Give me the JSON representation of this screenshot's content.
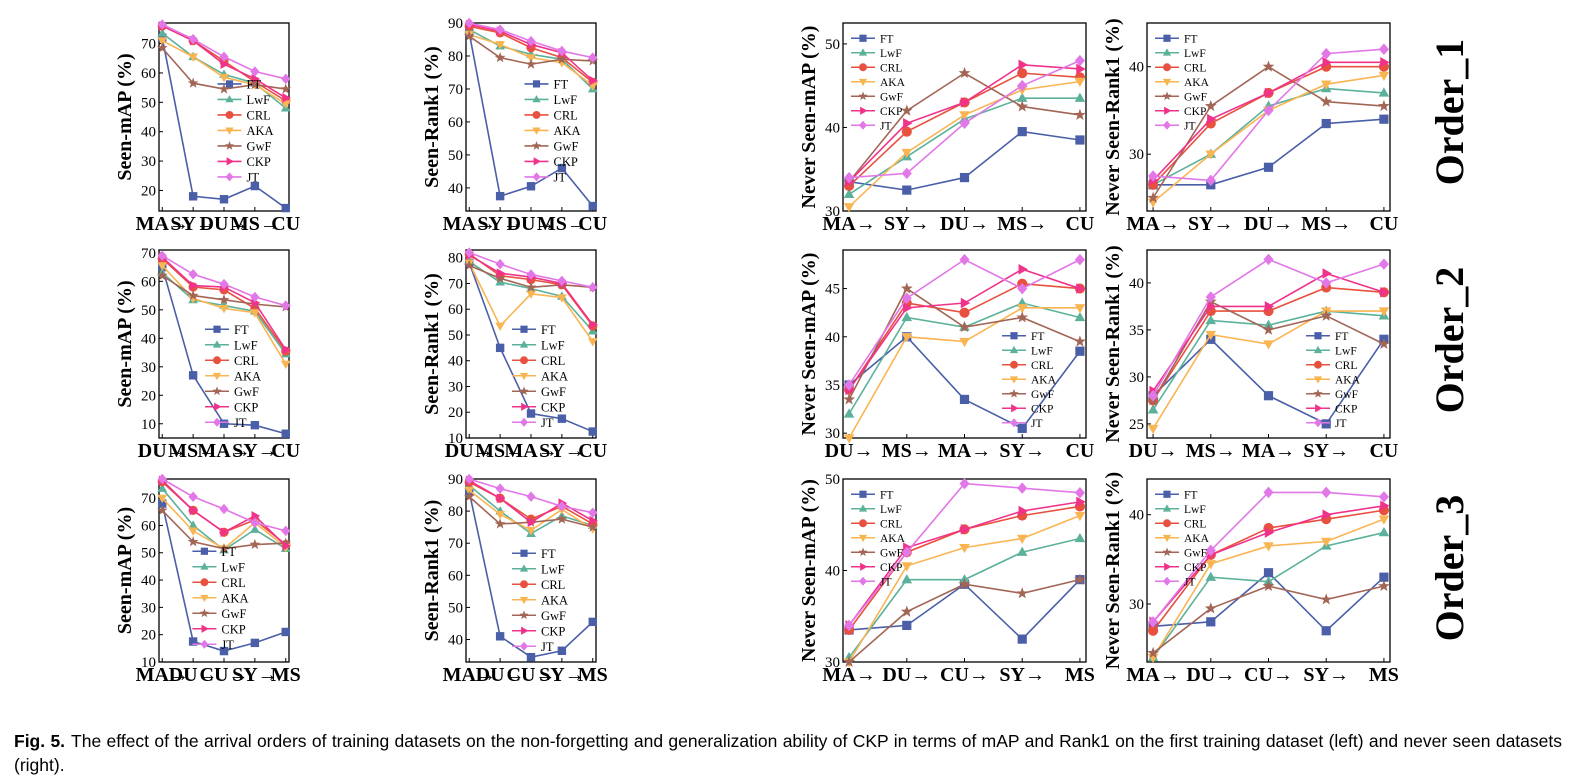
{
  "caption": {
    "label": "Fig. 5.",
    "text": "The effect of the arrival orders of training datasets on the non-forgetting and generalization ability of CKP in terms of mAP and Rank1 on the first training dataset (left) and never seen datasets (right)."
  },
  "row_labels": [
    "Order_1",
    "Order_2",
    "Order_3"
  ],
  "series_styles": [
    {
      "name": "FT",
      "color": "#4a5fa8",
      "marker": "square"
    },
    {
      "name": "LwF",
      "color": "#5cb19b",
      "marker": "triangle-up"
    },
    {
      "name": "CRL",
      "color": "#e8503f",
      "marker": "circle"
    },
    {
      "name": "AKA",
      "color": "#fab553",
      "marker": "triangle-down"
    },
    {
      "name": "GwF",
      "color": "#a36656",
      "marker": "star"
    },
    {
      "name": "CKP",
      "color": "#f0338a",
      "marker": "triangle-right"
    },
    {
      "name": "JT",
      "color": "#e277e8",
      "marker": "diamond"
    }
  ],
  "chart_data": [
    {
      "type": "line",
      "ylabel": "Seen-mAP (%)",
      "categories": [
        "MA→",
        "SY→",
        "DU→",
        "MS→",
        "CU"
      ],
      "ylim": [
        13,
        77
      ],
      "yticks": [
        20,
        30,
        40,
        50,
        60,
        70
      ],
      "legend": "center",
      "series": [
        {
          "name": "FT",
          "values": [
            72.0,
            18.0,
            17.0,
            21.5,
            14.0
          ]
        },
        {
          "name": "LwF",
          "values": [
            73.5,
            65.5,
            59.5,
            56.5,
            48.0
          ]
        },
        {
          "name": "CRL",
          "values": [
            76.0,
            71.0,
            64.0,
            57.0,
            50.5
          ]
        },
        {
          "name": "AKA",
          "values": [
            71.0,
            65.5,
            58.5,
            56.0,
            49.5
          ]
        },
        {
          "name": "GwF",
          "values": [
            68.5,
            56.5,
            54.5,
            56.0,
            54.5
          ]
        },
        {
          "name": "CKP",
          "values": [
            76.0,
            71.0,
            63.0,
            58.0,
            51.5
          ]
        },
        {
          "name": "JT",
          "values": [
            76.5,
            71.5,
            65.5,
            60.5,
            58.0
          ]
        }
      ]
    },
    {
      "type": "line",
      "ylabel": "Seen-Rank1 (%)",
      "categories": [
        "MA→",
        "SY→",
        "DU→",
        "MS→",
        "CU"
      ],
      "ylim": [
        33,
        90
      ],
      "yticks": [
        40,
        50,
        60,
        70,
        80,
        90
      ],
      "legend": "center",
      "series": [
        {
          "name": "FT",
          "values": [
            87.0,
            37.5,
            40.5,
            46.0,
            34.5
          ]
        },
        {
          "name": "LwF",
          "values": [
            88.0,
            83.0,
            80.5,
            79.0,
            70.0
          ]
        },
        {
          "name": "CRL",
          "values": [
            89.0,
            87.0,
            82.5,
            79.5,
            72.0
          ]
        },
        {
          "name": "AKA",
          "values": [
            86.5,
            83.5,
            79.5,
            78.0,
            71.0
          ]
        },
        {
          "name": "GwF",
          "values": [
            86.0,
            79.5,
            77.5,
            79.0,
            78.5
          ]
        },
        {
          "name": "CKP",
          "values": [
            89.5,
            87.5,
            83.5,
            81.0,
            72.5
          ]
        },
        {
          "name": "JT",
          "values": [
            90.0,
            88.0,
            84.5,
            81.5,
            79.5
          ]
        }
      ]
    },
    {
      "type": "line",
      "ylabel": "Never Seen-mAP (%)",
      "categories": [
        "MA→",
        "SY→",
        "DU→",
        "MS→",
        "CU"
      ],
      "ylim": [
        30,
        52.5
      ],
      "yticks": [
        30,
        40,
        50
      ],
      "legend": "top-left",
      "series": [
        {
          "name": "FT",
          "values": [
            33.5,
            32.5,
            34.0,
            39.5,
            38.5
          ]
        },
        {
          "name": "LwF",
          "values": [
            32.0,
            36.5,
            41.0,
            43.5,
            43.5
          ]
        },
        {
          "name": "CRL",
          "values": [
            33.0,
            39.5,
            43.0,
            46.5,
            46.0
          ]
        },
        {
          "name": "AKA",
          "values": [
            30.5,
            37.0,
            41.5,
            44.5,
            45.5
          ]
        },
        {
          "name": "GwF",
          "values": [
            33.5,
            42.0,
            46.5,
            42.5,
            41.5
          ]
        },
        {
          "name": "CKP",
          "values": [
            33.5,
            40.5,
            43.0,
            47.5,
            47.0
          ]
        },
        {
          "name": "JT",
          "values": [
            34.0,
            34.5,
            40.5,
            45.0,
            48.0
          ]
        }
      ]
    },
    {
      "type": "line",
      "ylabel": "Never Seen-Rank1 (%)",
      "categories": [
        "MA→",
        "SY→",
        "DU→",
        "MS→",
        "CU"
      ],
      "ylim": [
        23.5,
        45
      ],
      "yticks": [
        30,
        40
      ],
      "legend": "top-left",
      "series": [
        {
          "name": "FT",
          "values": [
            26.5,
            26.5,
            28.5,
            33.5,
            34.0
          ]
        },
        {
          "name": "LwF",
          "values": [
            26.5,
            30.0,
            35.5,
            37.5,
            37.0
          ]
        },
        {
          "name": "CRL",
          "values": [
            26.5,
            33.5,
            37.0,
            40.0,
            40.0
          ]
        },
        {
          "name": "AKA",
          "values": [
            24.5,
            30.0,
            35.0,
            38.0,
            39.0
          ]
        },
        {
          "name": "GwF",
          "values": [
            25.0,
            35.5,
            40.0,
            36.0,
            35.5
          ]
        },
        {
          "name": "CKP",
          "values": [
            27.0,
            34.0,
            37.0,
            40.5,
            40.5
          ]
        },
        {
          "name": "JT",
          "values": [
            27.5,
            27.0,
            35.0,
            41.5,
            42.0
          ]
        }
      ]
    },
    {
      "type": "line",
      "ylabel": "Seen-mAP (%)",
      "categories": [
        "DU→",
        "MS→",
        "MA→",
        "SY→",
        "CU"
      ],
      "ylim": [
        5,
        71
      ],
      "yticks": [
        10,
        20,
        30,
        40,
        50,
        60,
        70
      ],
      "legend": "bottom-right",
      "series": [
        {
          "name": "FT",
          "values": [
            65.0,
            27.0,
            10.0,
            9.5,
            6.5
          ]
        },
        {
          "name": "LwF",
          "values": [
            63.0,
            53.5,
            51.5,
            49.5,
            34.5
          ]
        },
        {
          "name": "CRL",
          "values": [
            68.0,
            58.0,
            57.0,
            50.5,
            35.5
          ]
        },
        {
          "name": "AKA",
          "values": [
            65.5,
            54.0,
            50.5,
            49.0,
            31.0
          ]
        },
        {
          "name": "GwF",
          "values": [
            62.0,
            55.0,
            53.5,
            52.0,
            51.0
          ]
        },
        {
          "name": "CKP",
          "values": [
            68.5,
            58.5,
            58.0,
            52.5,
            36.0
          ]
        },
        {
          "name": "JT",
          "values": [
            69.0,
            62.5,
            59.0,
            54.5,
            51.5
          ]
        }
      ]
    },
    {
      "type": "line",
      "ylabel": "Seen-Rank1 (%)",
      "categories": [
        "DU→",
        "MS→",
        "MA→",
        "SY→",
        "CU"
      ],
      "ylim": [
        10,
        83
      ],
      "yticks": [
        10,
        20,
        30,
        40,
        50,
        60,
        70,
        80
      ],
      "legend": "bottom-right",
      "series": [
        {
          "name": "FT",
          "values": [
            78.0,
            45.0,
            19.5,
            17.5,
            12.5
          ]
        },
        {
          "name": "LwF",
          "values": [
            78.5,
            70.5,
            68.0,
            65.0,
            51.5
          ]
        },
        {
          "name": "CRL",
          "values": [
            81.5,
            73.0,
            71.5,
            69.5,
            53.5
          ]
        },
        {
          "name": "AKA",
          "values": [
            78.0,
            53.5,
            66.0,
            64.5,
            47.5
          ]
        },
        {
          "name": "GwF",
          "values": [
            77.0,
            72.0,
            68.5,
            69.5,
            68.5
          ]
        },
        {
          "name": "CKP",
          "values": [
            81.0,
            74.0,
            72.5,
            70.0,
            54.0
          ]
        },
        {
          "name": "JT",
          "values": [
            82.0,
            77.5,
            73.5,
            71.0,
            68.5
          ]
        }
      ]
    },
    {
      "type": "line",
      "ylabel": "Never Seen-mAP (%)",
      "categories": [
        "DU→",
        "MS→",
        "MA→",
        "SY→",
        "CU"
      ],
      "ylim": [
        29.5,
        49
      ],
      "yticks": [
        30,
        35,
        40,
        45
      ],
      "legend": "bottom-right",
      "series": [
        {
          "name": "FT",
          "values": [
            35.0,
            40.0,
            33.5,
            30.5,
            38.5
          ]
        },
        {
          "name": "LwF",
          "values": [
            32.0,
            42.0,
            41.0,
            43.5,
            42.0
          ]
        },
        {
          "name": "CRL",
          "values": [
            34.5,
            43.5,
            42.5,
            45.5,
            45.0
          ]
        },
        {
          "name": "AKA",
          "values": [
            29.5,
            40.0,
            39.5,
            43.0,
            43.0
          ]
        },
        {
          "name": "GwF",
          "values": [
            33.5,
            45.0,
            41.0,
            42.0,
            39.5
          ]
        },
        {
          "name": "CKP",
          "values": [
            34.5,
            43.0,
            43.5,
            47.0,
            45.0
          ]
        },
        {
          "name": "JT",
          "values": [
            35.0,
            44.0,
            48.0,
            45.0,
            48.0
          ]
        }
      ]
    },
    {
      "type": "line",
      "ylabel": "Never Seen-Rank1 (%)",
      "categories": [
        "DU→",
        "MS→",
        "MA→",
        "SY→",
        "CU"
      ],
      "ylim": [
        23.5,
        43.5
      ],
      "yticks": [
        25,
        30,
        35,
        40
      ],
      "legend": "bottom-right",
      "series": [
        {
          "name": "FT",
          "values": [
            28.0,
            34.0,
            28.0,
            25.0,
            34.0
          ]
        },
        {
          "name": "LwF",
          "values": [
            26.5,
            36.0,
            35.5,
            37.0,
            36.5
          ]
        },
        {
          "name": "CRL",
          "values": [
            27.5,
            37.0,
            37.0,
            39.5,
            39.0
          ]
        },
        {
          "name": "AKA",
          "values": [
            24.5,
            34.5,
            33.5,
            37.0,
            37.0
          ]
        },
        {
          "name": "GwF",
          "values": [
            27.5,
            38.0,
            35.0,
            36.5,
            33.5
          ]
        },
        {
          "name": "CKP",
          "values": [
            28.5,
            37.5,
            37.5,
            41.0,
            39.0
          ]
        },
        {
          "name": "JT",
          "values": [
            28.0,
            38.5,
            42.5,
            40.0,
            42.0
          ]
        }
      ]
    },
    {
      "type": "line",
      "ylabel": "Seen-mAP (%)",
      "categories": [
        "MA→",
        "DU→",
        "CU→",
        "SY→",
        "MS"
      ],
      "ylim": [
        10,
        77
      ],
      "yticks": [
        10,
        20,
        30,
        40,
        50,
        60,
        70
      ],
      "legend": "bottom-center",
      "series": [
        {
          "name": "FT",
          "values": [
            68.0,
            17.5,
            14.0,
            17.0,
            21.0
          ]
        },
        {
          "name": "LwF",
          "values": [
            73.5,
            60.0,
            51.0,
            58.5,
            51.5
          ]
        },
        {
          "name": "CRL",
          "values": [
            76.0,
            65.5,
            57.5,
            62.0,
            53.0
          ]
        },
        {
          "name": "AKA",
          "values": [
            70.0,
            58.0,
            51.5,
            61.0,
            52.0
          ]
        },
        {
          "name": "GwF",
          "values": [
            65.5,
            54.0,
            51.5,
            53.0,
            53.5
          ]
        },
        {
          "name": "CKP",
          "values": [
            76.5,
            65.5,
            57.5,
            63.5,
            52.5
          ]
        },
        {
          "name": "JT",
          "values": [
            77.0,
            70.5,
            66.0,
            61.0,
            58.0
          ]
        }
      ]
    },
    {
      "type": "line",
      "ylabel": "Seen-Rank1 (%)",
      "categories": [
        "MA→",
        "DU→",
        "CU→",
        "SY→",
        "MS"
      ],
      "ylim": [
        33,
        90
      ],
      "yticks": [
        40,
        50,
        60,
        70,
        80,
        90
      ],
      "legend": "bottom-right",
      "series": [
        {
          "name": "FT",
          "values": [
            86.0,
            41.0,
            34.5,
            36.5,
            45.5
          ]
        },
        {
          "name": "LwF",
          "values": [
            88.0,
            80.0,
            73.0,
            78.5,
            75.5
          ]
        },
        {
          "name": "CRL",
          "values": [
            89.0,
            84.0,
            77.5,
            81.5,
            76.0
          ]
        },
        {
          "name": "AKA",
          "values": [
            86.5,
            79.0,
            74.0,
            80.5,
            74.5
          ]
        },
        {
          "name": "GwF",
          "values": [
            84.5,
            76.0,
            76.5,
            77.5,
            75.0
          ]
        },
        {
          "name": "CKP",
          "values": [
            89.5,
            84.0,
            76.5,
            82.5,
            77.0
          ]
        },
        {
          "name": "JT",
          "values": [
            90.0,
            87.0,
            84.5,
            81.5,
            79.5
          ]
        }
      ]
    },
    {
      "type": "line",
      "ylabel": "Never Seen-mAP (%)",
      "categories": [
        "MA→",
        "DU→",
        "CU→",
        "SY→",
        "MS"
      ],
      "ylim": [
        30,
        50
      ],
      "yticks": [
        30,
        40,
        50
      ],
      "legend": "top-left",
      "series": [
        {
          "name": "FT",
          "values": [
            33.5,
            34.0,
            38.5,
            32.5,
            39.0
          ]
        },
        {
          "name": "LwF",
          "values": [
            30.5,
            39.0,
            39.0,
            42.0,
            43.5
          ]
        },
        {
          "name": "CRL",
          "values": [
            33.5,
            42.0,
            44.5,
            46.0,
            47.0
          ]
        },
        {
          "name": "AKA",
          "values": [
            30.0,
            40.5,
            42.5,
            43.5,
            46.0
          ]
        },
        {
          "name": "GwF",
          "values": [
            30.0,
            35.5,
            38.5,
            37.5,
            39.0
          ]
        },
        {
          "name": "CKP",
          "values": [
            34.0,
            42.5,
            44.5,
            46.5,
            47.5
          ]
        },
        {
          "name": "JT",
          "values": [
            34.0,
            42.0,
            49.5,
            49.0,
            48.5
          ]
        }
      ]
    },
    {
      "type": "line",
      "ylabel": "Never Seen-Rank1 (%)",
      "categories": [
        "MA→",
        "DU→",
        "CU→",
        "SY→",
        "MS"
      ],
      "ylim": [
        23.5,
        44
      ],
      "yticks": [
        30,
        40
      ],
      "legend": "top-left",
      "series": [
        {
          "name": "FT",
          "values": [
            27.5,
            28.0,
            33.5,
            27.0,
            33.0
          ]
        },
        {
          "name": "LwF",
          "values": [
            24.0,
            33.0,
            32.5,
            36.5,
            38.0
          ]
        },
        {
          "name": "CRL",
          "values": [
            27.0,
            35.5,
            38.5,
            39.5,
            40.5
          ]
        },
        {
          "name": "AKA",
          "values": [
            24.0,
            34.5,
            36.5,
            37.0,
            39.5
          ]
        },
        {
          "name": "GwF",
          "values": [
            24.5,
            29.5,
            32.0,
            30.5,
            32.0
          ]
        },
        {
          "name": "CKP",
          "values": [
            28.0,
            35.5,
            38.0,
            40.0,
            41.0
          ]
        },
        {
          "name": "JT",
          "values": [
            28.0,
            36.0,
            42.5,
            42.5,
            42.0
          ]
        }
      ]
    }
  ]
}
